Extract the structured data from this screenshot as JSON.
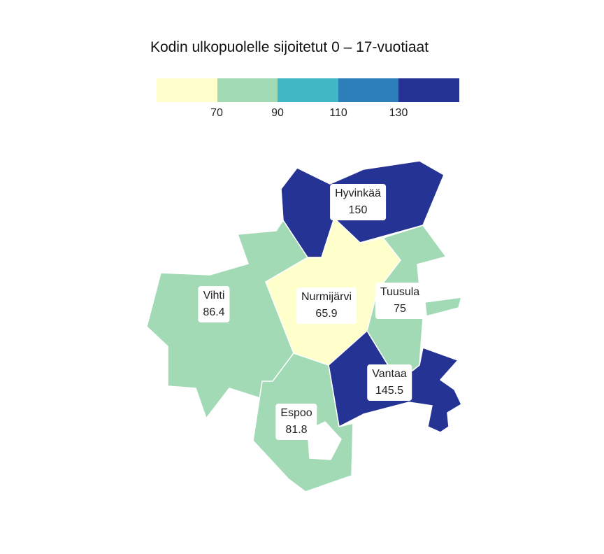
{
  "title": "Kodin ulkopuolelle sijoitetut 0 – 17-vuotiaat",
  "legend": {
    "colors": [
      "#ffffcc",
      "#a1dab4",
      "#41b6c4",
      "#2c7fb8",
      "#253494"
    ],
    "thresholds": [
      "70",
      "90",
      "110",
      "130"
    ]
  },
  "regions": [
    {
      "name": "Hyvinkää",
      "value": "150",
      "color": "#253494"
    },
    {
      "name": "Nurmijärvi",
      "value": "65.9",
      "color": "#ffffcc"
    },
    {
      "name": "Vihti",
      "value": "86.4",
      "color": "#a1dab4"
    },
    {
      "name": "Tuusula",
      "value": "75",
      "color": "#a1dab4"
    },
    {
      "name": "Vantaa",
      "value": "145.5",
      "color": "#253494"
    },
    {
      "name": "Espoo",
      "value": "81.8",
      "color": "#a1dab4"
    }
  ]
}
